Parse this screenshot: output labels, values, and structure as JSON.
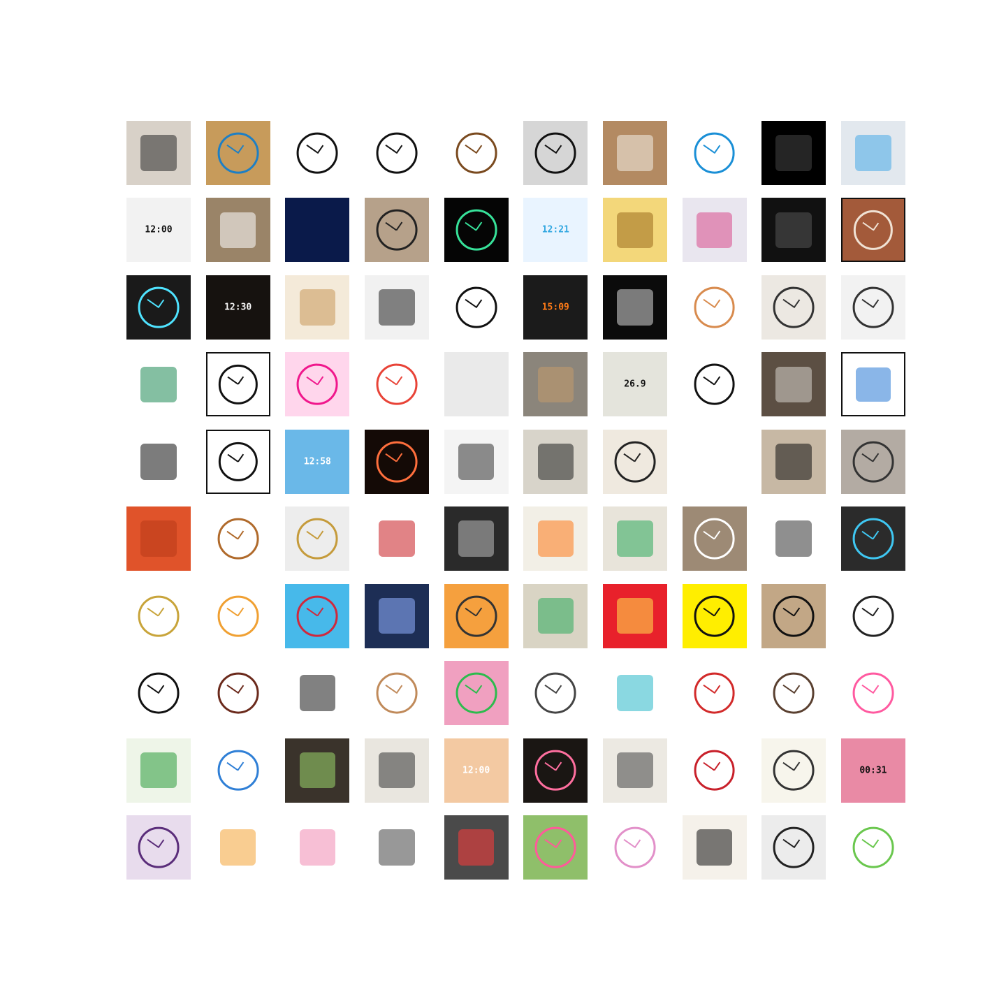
{
  "thumbnails": [
    {
      "kind": "scene",
      "bg": "#d8d1c8",
      "fg": "#2b2b2b"
    },
    {
      "kind": "clock",
      "bg": "#c79b5b",
      "fg": "#1e7fc4"
    },
    {
      "kind": "clock",
      "bg": "#ffffff",
      "fg": "#111111"
    },
    {
      "kind": "clock",
      "bg": "#ffffff",
      "fg": "#111111"
    },
    {
      "kind": "clock",
      "bg": "#ffffff",
      "fg": "#7a4a1f"
    },
    {
      "kind": "clock",
      "bg": "#d6d6d6",
      "fg": "#111111"
    },
    {
      "kind": "scene",
      "bg": "#b38a62",
      "fg": "#f3eee6"
    },
    {
      "kind": "clock",
      "bg": "#ffffff",
      "fg": "#1a8fd6"
    },
    {
      "kind": "dark",
      "bg": "#000000",
      "fg": "#444444"
    },
    {
      "kind": "scene",
      "bg": "#e2e8ee",
      "fg": "#49a9e8"
    },
    {
      "kind": "lcd",
      "bg": "#f2f2f2",
      "fg": "#111111",
      "label": "12:00"
    },
    {
      "kind": "scene",
      "bg": "#9a8468",
      "fg": "#ffffff"
    },
    {
      "kind": "lcd",
      "bg": "#0a1a4a",
      "fg": "#1e5bff",
      "label": ""
    },
    {
      "kind": "clock",
      "bg": "#b6a18a",
      "fg": "#222222"
    },
    {
      "kind": "clock",
      "bg": "#050505",
      "fg": "#37e29a"
    },
    {
      "kind": "lcd",
      "bg": "#e9f4ff",
      "fg": "#2fa6e0",
      "label": "12:21"
    },
    {
      "kind": "scene",
      "bg": "#f3d77a",
      "fg": "#9b6b1e"
    },
    {
      "kind": "scene",
      "bg": "#e9e6ef",
      "fg": "#d84c8c"
    },
    {
      "kind": "dark",
      "bg": "#111111",
      "fg": "#555555"
    },
    {
      "kind": "clock",
      "bg": "#a35a3a",
      "fg": "#f0e2d4",
      "framed": true
    },
    {
      "kind": "clock",
      "bg": "#1a1a1a",
      "fg": "#4fe3ff"
    },
    {
      "kind": "lcd",
      "bg": "#16120f",
      "fg": "#f5f5f5",
      "label": "12:30"
    },
    {
      "kind": "scene",
      "bg": "#f4ead9",
      "fg": "#c8985a"
    },
    {
      "kind": "scene",
      "bg": "#f1f1f1",
      "fg": "#222222"
    },
    {
      "kind": "clock",
      "bg": "#ffffff",
      "fg": "#111111"
    },
    {
      "kind": "lcd",
      "bg": "#1b1b1b",
      "fg": "#ff7b17",
      "label": "15:09"
    },
    {
      "kind": "scene",
      "bg": "#0b0b0b",
      "fg": "#d9d9d9"
    },
    {
      "kind": "clock",
      "bg": "#ffffff",
      "fg": "#d88b4e"
    },
    {
      "kind": "clock",
      "bg": "#ece8e2",
      "fg": "#333333"
    },
    {
      "kind": "clock",
      "bg": "#f2f2f2",
      "fg": "#333333"
    },
    {
      "kind": "scene",
      "bg": "#ffffff",
      "fg": "#1f8a55"
    },
    {
      "kind": "clock",
      "bg": "#ffffff",
      "fg": "#111111",
      "framed": true
    },
    {
      "kind": "clock",
      "bg": "#ffd6ec",
      "fg": "#f0178c"
    },
    {
      "kind": "clock",
      "bg": "#ffffff",
      "fg": "#e84337"
    },
    {
      "kind": "lcd",
      "bg": "#eaeaea",
      "fg": "#1a6cff",
      "label": ""
    },
    {
      "kind": "scene",
      "bg": "#8b857b",
      "fg": "#c49a6c"
    },
    {
      "kind": "lcd",
      "bg": "#e4e4dc",
      "fg": "#111111",
      "label": "26.9"
    },
    {
      "kind": "clock",
      "bg": "#ffffff",
      "fg": "#111111"
    },
    {
      "kind": "scene",
      "bg": "#5c4f43",
      "fg": "#d7d3cc"
    },
    {
      "kind": "scene",
      "bg": "#ffffff",
      "fg": "#2a7ad6",
      "framed": true
    },
    {
      "kind": "scene",
      "bg": "#ffffff",
      "fg": "#111111"
    },
    {
      "kind": "clock",
      "bg": "#ffffff",
      "fg": "#111111",
      "framed": true
    },
    {
      "kind": "lcd",
      "bg": "#6ab8e8",
      "fg": "#ffffff",
      "label": "12:58"
    },
    {
      "kind": "clock",
      "bg": "#140a06",
      "fg": "#ff6f3d"
    },
    {
      "kind": "scene",
      "bg": "#f4f4f4",
      "fg": "#333333"
    },
    {
      "kind": "scene",
      "bg": "#d8d4ca",
      "fg": "#222222"
    },
    {
      "kind": "clock",
      "bg": "#efe9df",
      "fg": "#222222"
    },
    {
      "kind": "lcd",
      "bg": "#ffffff",
      "fg": "#1d6bff",
      "label": ""
    },
    {
      "kind": "scene",
      "bg": "#c7b8a4",
      "fg": "#111111"
    },
    {
      "kind": "clock",
      "bg": "#b3aba3",
      "fg": "#333333"
    },
    {
      "kind": "scene",
      "bg": "#e0532a",
      "fg": "#b83b17"
    },
    {
      "kind": "clock",
      "bg": "#ffffff",
      "fg": "#b06a2b"
    },
    {
      "kind": "clock",
      "bg": "#ededed",
      "fg": "#c59b3b"
    },
    {
      "kind": "scene",
      "bg": "#ffffff",
      "fg": "#c81e23"
    },
    {
      "kind": "scene",
      "bg": "#2a2a2a",
      "fg": "#bbbbbb"
    },
    {
      "kind": "scene",
      "bg": "#f2efe6",
      "fg": "#ff7a19"
    },
    {
      "kind": "scene",
      "bg": "#e8e4da",
      "fg": "#2eaa5c"
    },
    {
      "kind": "clock",
      "bg": "#9d8a75",
      "fg": "#ffffff"
    },
    {
      "kind": "scene",
      "bg": "#ffffff",
      "fg": "#333333"
    },
    {
      "kind": "clock",
      "bg": "#2b2b2b",
      "fg": "#3fc7f2"
    },
    {
      "kind": "clock",
      "bg": "#ffffff",
      "fg": "#c8a43a"
    },
    {
      "kind": "clock",
      "bg": "#ffffff",
      "fg": "#f0a032"
    },
    {
      "kind": "clock",
      "bg": "#47b9ea",
      "fg": "#d0283c"
    },
    {
      "kind": "scene",
      "bg": "#1d2e55",
      "fg": "#8fb0ff"
    },
    {
      "kind": "clock",
      "bg": "#f5a03e",
      "fg": "#333333"
    },
    {
      "kind": "scene",
      "bg": "#d9d4c4",
      "fg": "#2eaa5c"
    },
    {
      "kind": "scene",
      "bg": "#e8212b",
      "fg": "#ffe34f"
    },
    {
      "kind": "clock",
      "bg": "#ffee00",
      "fg": "#111111"
    },
    {
      "kind": "clock",
      "bg": "#c2a786",
      "fg": "#111111"
    },
    {
      "kind": "clock",
      "bg": "#ffffff",
      "fg": "#222222"
    },
    {
      "kind": "clock",
      "bg": "#ffffff",
      "fg": "#111111"
    },
    {
      "kind": "clock",
      "bg": "#ffffff",
      "fg": "#6b2a1c"
    },
    {
      "kind": "scene",
      "bg": "#ffffff",
      "fg": "#1a1a1a"
    },
    {
      "kind": "clock",
      "bg": "#ffffff",
      "fg": "#c08a5a"
    },
    {
      "kind": "clock",
      "bg": "#f0a0c0",
      "fg": "#2dbb4d"
    },
    {
      "kind": "clock",
      "bg": "#ffffff",
      "fg": "#444444"
    },
    {
      "kind": "scene",
      "bg": "#ffffff",
      "fg": "#29b8c8"
    },
    {
      "kind": "clock",
      "bg": "#ffffff",
      "fg": "#d22a2a"
    },
    {
      "kind": "clock",
      "bg": "#ffffff",
      "fg": "#5a4030"
    },
    {
      "kind": "clock",
      "bg": "#ffffff",
      "fg": "#ff5aa0"
    },
    {
      "kind": "scene",
      "bg": "#eef5e8",
      "fg": "#2b9a3b"
    },
    {
      "kind": "clock",
      "bg": "#ffffff",
      "fg": "#2f7fd6"
    },
    {
      "kind": "scene",
      "bg": "#3a332b",
      "fg": "#9bd66b"
    },
    {
      "kind": "scene",
      "bg": "#e9e6df",
      "fg": "#333333"
    },
    {
      "kind": "lcd",
      "bg": "#f3c9a2",
      "fg": "#ffffff",
      "label": "12:00"
    },
    {
      "kind": "clock",
      "bg": "#1a1613",
      "fg": "#ff6f9f"
    },
    {
      "kind": "scene",
      "bg": "#ece9e2",
      "fg": "#444444"
    },
    {
      "kind": "clock",
      "bg": "#ffffff",
      "fg": "#c8202a"
    },
    {
      "kind": "clock",
      "bg": "#f7f5ec",
      "fg": "#333333"
    },
    {
      "kind": "lcd",
      "bg": "#e98aa5",
      "fg": "#111111",
      "label": "00:31"
    },
    {
      "kind": "clock",
      "bg": "#e8dced",
      "fg": "#5a2d7a"
    },
    {
      "kind": "scene",
      "bg": "#ffffff",
      "fg": "#f4a437"
    },
    {
      "kind": "scene",
      "bg": "#ffffff",
      "fg": "#f08bb2"
    },
    {
      "kind": "scene",
      "bg": "#ffffff",
      "fg": "#444444"
    },
    {
      "kind": "scene",
      "bg": "#4a4a4a",
      "fg": "#ff3a3a"
    },
    {
      "kind": "clock",
      "bg": "#8fbf6a",
      "fg": "#ff5a9a"
    },
    {
      "kind": "clock",
      "bg": "#ffffff",
      "fg": "#e290c9"
    },
    {
      "kind": "scene",
      "bg": "#f5f1ea",
      "fg": "#111111"
    },
    {
      "kind": "clock",
      "bg": "#ececec",
      "fg": "#222222"
    },
    {
      "kind": "clock",
      "bg": "#ffffff",
      "fg": "#6ac74e"
    }
  ]
}
